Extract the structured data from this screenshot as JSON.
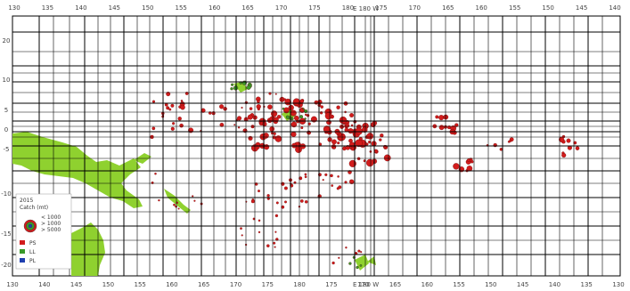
{
  "map": {
    "top_axis_labels": [
      "130",
      "135",
      "140",
      "145",
      "150",
      "155",
      "160",
      "165",
      "170",
      "175",
      "180",
      "175",
      "170",
      "165",
      "160",
      "155",
      "150",
      "145",
      "140"
    ],
    "bottom_axis_labels": [
      "130",
      "140",
      "145",
      "150",
      "155",
      "160",
      "165",
      "170",
      "175",
      "180",
      "175",
      "170",
      "165",
      "160",
      "155",
      "150",
      "145",
      "140",
      "135",
      "130"
    ],
    "left_axis_labels": [
      "20",
      "10",
      "5",
      "0",
      "-5",
      "-10",
      "-15",
      "-20"
    ],
    "date_line_label_top": "E 180 W",
    "date_line_label_bottom": "E 180 W",
    "colors": {
      "land": "#8fd12f",
      "grid": "#000000",
      "catch_red": "#d21c1c",
      "catch_green": "#3a9a2a",
      "catch_blue": "#1f3fb0"
    }
  },
  "legend": {
    "year": "2015",
    "subtitle": "Catch (mt)",
    "size_scale": [
      "< 1000",
      "> 1000",
      "> 5000"
    ],
    "items": [
      {
        "label": "PS",
        "color": "#d21c1c"
      },
      {
        "label": "LL",
        "color": "#3a9a2a"
      },
      {
        "label": "PL",
        "color": "#1f3fb0"
      }
    ]
  }
}
